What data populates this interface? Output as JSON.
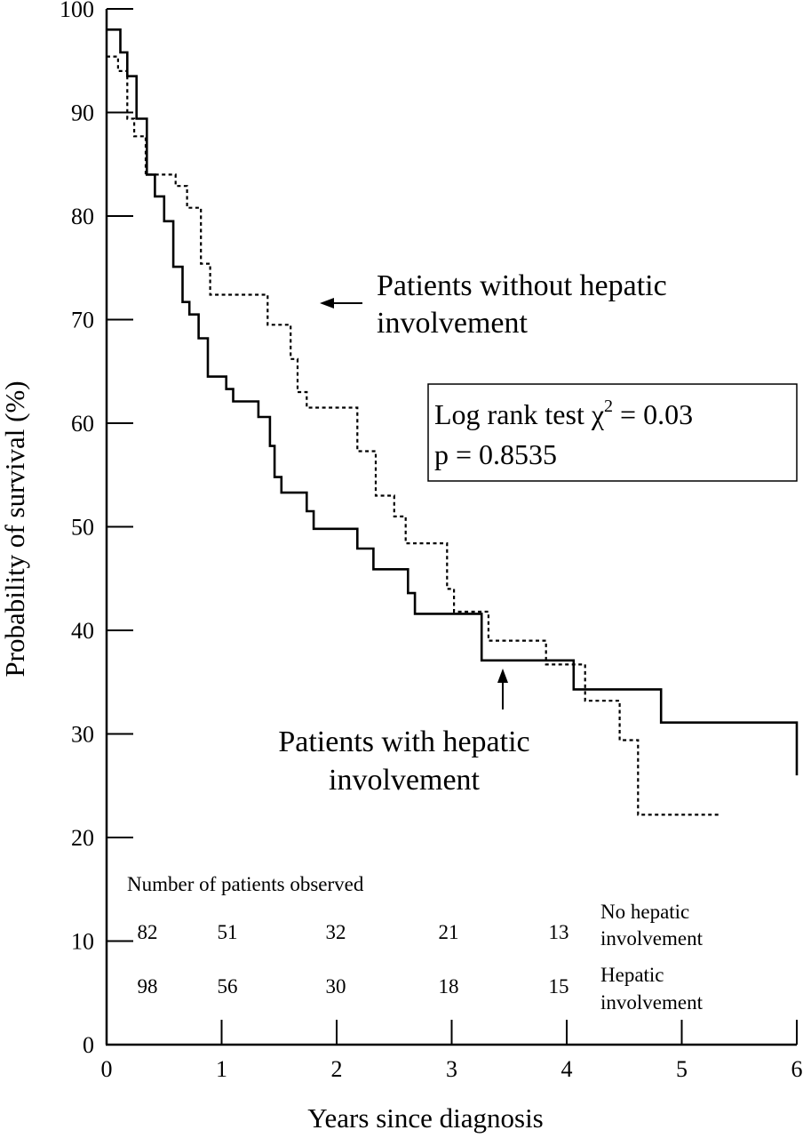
{
  "chart_data": {
    "type": "line",
    "step": true,
    "xlabel": "Years since diagnosis",
    "ylabel": "Probability of survival (%)",
    "xlim": [
      0,
      6
    ],
    "ylim": [
      0,
      100
    ],
    "xticks": [
      0,
      1,
      2,
      3,
      4,
      5,
      6
    ],
    "yticks": [
      0,
      10,
      20,
      30,
      40,
      50,
      60,
      70,
      80,
      90,
      100
    ],
    "grid": false,
    "series": [
      {
        "name": "Patients with hepatic involvement",
        "style": "solid",
        "color": "#000000",
        "x": [
          0,
          0.12,
          0.18,
          0.26,
          0.35,
          0.42,
          0.5,
          0.58,
          0.66,
          0.72,
          0.8,
          0.88,
          0.92,
          1.04,
          1.1,
          1.32,
          1.42,
          1.46,
          1.52,
          1.6,
          1.74,
          1.8,
          2.18,
          2.32,
          2.62,
          2.68,
          3.26,
          4.06,
          4.82,
          6.0
        ],
        "y": [
          98.0,
          95.8,
          93.5,
          89.4,
          84.0,
          81.9,
          79.5,
          75.1,
          71.7,
          70.5,
          68.2,
          64.5,
          64.5,
          63.3,
          62.1,
          60.6,
          57.8,
          54.8,
          53.3,
          53.3,
          51.5,
          49.8,
          47.9,
          45.9,
          43.6,
          41.6,
          37.1,
          34.3,
          31.1,
          26.0
        ]
      },
      {
        "name": "Patients without hepatic involvement",
        "style": "dotted",
        "color": "#000000",
        "x": [
          0,
          0.1,
          0.18,
          0.24,
          0.34,
          0.42,
          0.6,
          0.7,
          0.82,
          0.9,
          1.4,
          1.6,
          1.66,
          1.74,
          2.18,
          2.34,
          2.5,
          2.6,
          2.96,
          3.02,
          3.32,
          3.82,
          4.16,
          4.46,
          4.62,
          5.32
        ],
        "y": [
          95.4,
          94.0,
          89.4,
          87.7,
          84.0,
          84.0,
          82.9,
          80.8,
          75.4,
          72.4,
          69.5,
          66.2,
          63.0,
          61.5,
          57.3,
          53.0,
          51.0,
          48.4,
          44.0,
          41.8,
          39.0,
          36.7,
          33.2,
          29.4,
          22.2,
          22.2
        ]
      }
    ],
    "annotations": {
      "without_line1": "Patients without hepatic",
      "without_line2": "involvement",
      "with_line1": "Patients with hepatic",
      "with_line2": "involvement",
      "stat_prefix": "Log rank test χ",
      "stat_sup": "2",
      "stat_suffix": " = 0.03",
      "p_value": "p = 0.8535"
    },
    "risk_table": {
      "title": "Number of patients observed",
      "rows": [
        {
          "label_line1": "No hepatic",
          "label_line2": "involvement",
          "values": [
            "82",
            "51",
            "32",
            "21",
            "13"
          ]
        },
        {
          "label_line1": "Hepatic",
          "label_line2": "involvement",
          "values": [
            "98",
            "56",
            "30",
            "18",
            "15"
          ]
        }
      ]
    }
  }
}
